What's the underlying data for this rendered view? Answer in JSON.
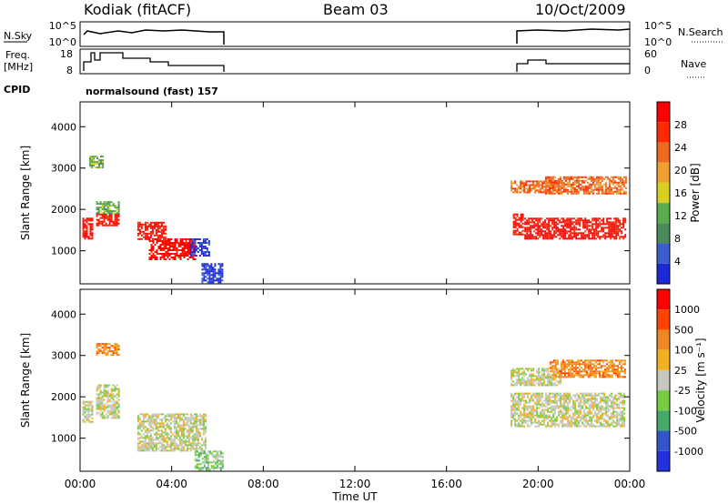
{
  "header": {
    "station": "Kodiak (fitACF)",
    "beam": "Beam 03",
    "date": "10/Oct/2009",
    "cpid_label": "CPID",
    "cpid_text": "normalsound (fast) 157"
  },
  "panels": {
    "nsky": {
      "left_label": "N.Sky",
      "right_label": "N.Search",
      "left_ticks": [
        "10^5",
        "10^0"
      ],
      "right_ticks": [
        "10^5",
        "10^0"
      ]
    },
    "freq": {
      "left_label_1": "Freq.",
      "left_label_2": "[MHz]",
      "right_label": "Nave",
      "left_ticks": [
        "18",
        "8"
      ],
      "right_ticks": [
        "60",
        "0"
      ]
    },
    "power": {
      "ylabel": "Slant Range [km]",
      "cbar_label": "Power [dB]"
    },
    "velocity": {
      "ylabel": "Slant Range [km]",
      "cbar_label": "Velocity [m s⁻¹]"
    }
  },
  "xaxis": {
    "label": "Time UT",
    "ticks": [
      "00:00",
      "04:00",
      "08:00",
      "12:00",
      "16:00",
      "20:00",
      "00:00"
    ]
  },
  "colors": {
    "power": [
      "#1a2bd6",
      "#3a5ed0",
      "#4a8a5a",
      "#5aab4a",
      "#d8d020",
      "#f0a030",
      "#ee6a20",
      "#ff2a00",
      "#ff0000"
    ],
    "velocity": [
      "#2233dd",
      "#3355cc",
      "#44aa66",
      "#77cc44",
      "#c8c8c0",
      "#f0b020",
      "#ee8822",
      "#ff4400",
      "#ff0000"
    ]
  },
  "chart_data": [
    {
      "type": "heatmap",
      "title": "Power",
      "x_unit": "hours UT",
      "xlim": [
        0,
        24
      ],
      "ylabel": "Slant Range [km]",
      "ylim": [
        200,
        4600
      ],
      "yticks": [
        1000,
        2000,
        3000,
        4000
      ],
      "colorbar": {
        "label": "Power [dB]",
        "ticks": [
          4,
          8,
          12,
          16,
          20,
          24,
          28
        ]
      },
      "regions": [
        {
          "t": [
            0.1,
            0.5
          ],
          "r": [
            1300,
            1800
          ],
          "color_index": 8
        },
        {
          "t": [
            0.4,
            1.0
          ],
          "r": [
            3000,
            3300
          ],
          "color_index": 3
        },
        {
          "t": [
            0.7,
            1.7
          ],
          "r": [
            1600,
            1900
          ],
          "color_index": 8
        },
        {
          "t": [
            0.7,
            1.7
          ],
          "r": [
            1900,
            2200
          ],
          "color_index": 3
        },
        {
          "t": [
            2.5,
            3.7
          ],
          "r": [
            1300,
            1700
          ],
          "color_index": 8
        },
        {
          "t": [
            3.0,
            5.0
          ],
          "r": [
            800,
            1300
          ],
          "color_index": 8
        },
        {
          "t": [
            4.8,
            5.6
          ],
          "r": [
            900,
            1300
          ],
          "color_index": 0
        },
        {
          "t": [
            5.3,
            6.2
          ],
          "r": [
            250,
            700
          ],
          "color_index": 0
        },
        {
          "t": [
            18.9,
            19.3
          ],
          "r": [
            1400,
            1900
          ],
          "color_index": 8
        },
        {
          "t": [
            18.8,
            21.0
          ],
          "r": [
            2400,
            2700
          ],
          "color_index": 6
        },
        {
          "t": [
            19.4,
            23.8
          ],
          "r": [
            1300,
            1800
          ],
          "color_index": 8
        },
        {
          "t": [
            20.3,
            23.8
          ],
          "r": [
            2400,
            2800
          ],
          "color_index": 6
        }
      ]
    },
    {
      "type": "heatmap",
      "title": "Velocity",
      "x_unit": "hours UT",
      "xlim": [
        0,
        24
      ],
      "ylabel": "Slant Range [km]",
      "ylim": [
        200,
        4600
      ],
      "yticks": [
        1000,
        2000,
        3000,
        4000
      ],
      "colorbar": {
        "label": "Velocity [m s⁻¹]",
        "ticks": [
          1000,
          500,
          100,
          25,
          -25,
          -100,
          -500,
          -1000
        ]
      },
      "regions": [
        {
          "t": [
            0.1,
            0.5
          ],
          "r": [
            1400,
            1900
          ],
          "color_index": 4
        },
        {
          "t": [
            0.7,
            1.7
          ],
          "r": [
            1500,
            2300
          ],
          "color_index": 4
        },
        {
          "t": [
            0.7,
            1.7
          ],
          "r": [
            3000,
            3300
          ],
          "color_index": 6
        },
        {
          "t": [
            2.5,
            5.5
          ],
          "r": [
            700,
            1600
          ],
          "color_index": 4
        },
        {
          "t": [
            5.0,
            6.2
          ],
          "r": [
            250,
            700
          ],
          "color_index": 3
        },
        {
          "t": [
            18.8,
            23.8
          ],
          "r": [
            1300,
            2100
          ],
          "color_index": 4
        },
        {
          "t": [
            18.8,
            21.0
          ],
          "r": [
            2300,
            2700
          ],
          "color_index": 4
        },
        {
          "t": [
            20.5,
            23.8
          ],
          "r": [
            2500,
            2900
          ],
          "color_index": 6
        }
      ]
    }
  ]
}
